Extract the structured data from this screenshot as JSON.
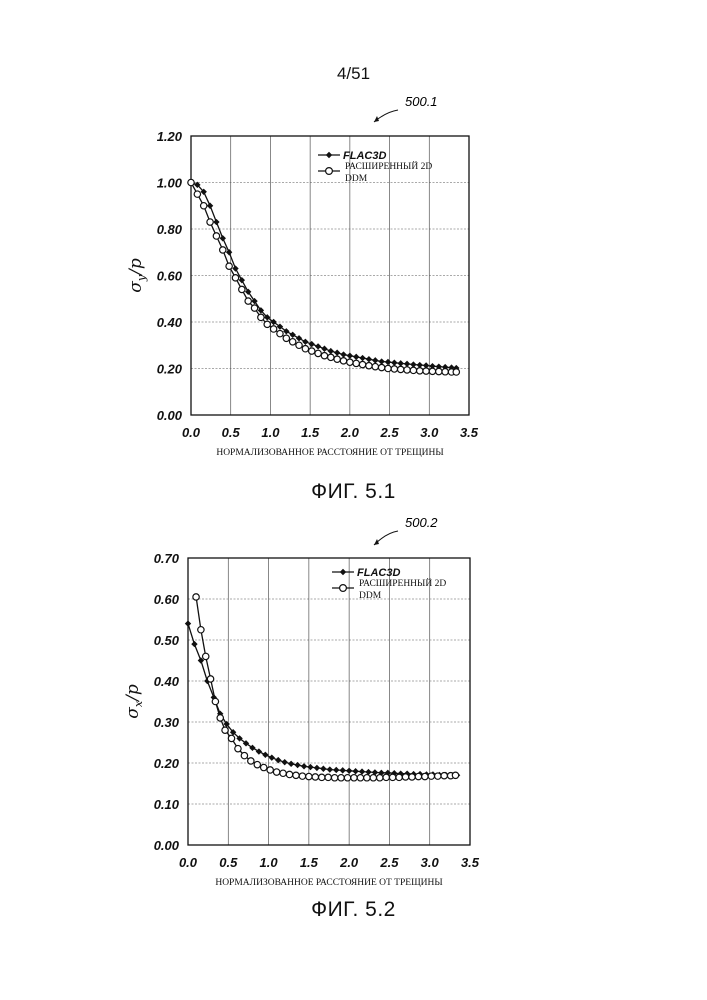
{
  "page_number": "4/51",
  "chart_data": [
    {
      "type": "line",
      "ref": "500.1",
      "figure_label": "ФИГ. 5.1",
      "ylabel": "σy/p",
      "ylabel_main": "σ",
      "ylabel_sub": "y",
      "ylabel_tail": "/p",
      "xlabel": "НОРМАЛИЗОВАННОЕ РАССТОЯНИЕ ОТ ТРЕЩИНЫ",
      "xlim": [
        0,
        3.5
      ],
      "ylim": [
        0,
        1.2
      ],
      "xticks": [
        "0.0",
        "0.5",
        "1.0",
        "1.5",
        "2.0",
        "2.5",
        "3.0",
        "3.5"
      ],
      "yticks": [
        "0.00",
        "0.20",
        "0.40",
        "0.60",
        "0.80",
        "1.00",
        "1.20"
      ],
      "grid": true,
      "legend": {
        "position": "top-right",
        "flac_label": "FLAC3D",
        "ddm_label_line1": "РАСШИРЕННЫЙ 2D",
        "ddm_label_line2": "DDM"
      },
      "series": [
        {
          "name": "FLAC3D",
          "marker": "diamond-filled",
          "x": [
            0.0,
            0.08,
            0.16,
            0.24,
            0.32,
            0.4,
            0.48,
            0.56,
            0.64,
            0.72,
            0.8,
            0.88,
            0.96,
            1.04,
            1.12,
            1.2,
            1.28,
            1.36,
            1.44,
            1.52,
            1.6,
            1.68,
            1.76,
            1.84,
            1.92,
            2.0,
            2.08,
            2.16,
            2.24,
            2.32,
            2.4,
            2.48,
            2.56,
            2.64,
            2.72,
            2.8,
            2.88,
            2.96,
            3.04,
            3.12,
            3.2,
            3.28,
            3.34
          ],
          "y": [
            1.0,
            0.99,
            0.96,
            0.9,
            0.83,
            0.76,
            0.7,
            0.63,
            0.58,
            0.53,
            0.49,
            0.45,
            0.42,
            0.4,
            0.38,
            0.36,
            0.345,
            0.33,
            0.315,
            0.305,
            0.295,
            0.285,
            0.275,
            0.268,
            0.26,
            0.255,
            0.25,
            0.245,
            0.24,
            0.235,
            0.23,
            0.228,
            0.225,
            0.222,
            0.22,
            0.217,
            0.215,
            0.213,
            0.21,
            0.208,
            0.206,
            0.204,
            0.202
          ]
        },
        {
          "name": "РАСШИРЕННЫЙ 2D DDM",
          "marker": "circle-open",
          "x": [
            0.0,
            0.08,
            0.16,
            0.24,
            0.32,
            0.4,
            0.48,
            0.56,
            0.64,
            0.72,
            0.8,
            0.88,
            0.96,
            1.04,
            1.12,
            1.2,
            1.28,
            1.36,
            1.44,
            1.52,
            1.6,
            1.68,
            1.76,
            1.84,
            1.92,
            2.0,
            2.08,
            2.16,
            2.24,
            2.32,
            2.4,
            2.48,
            2.56,
            2.64,
            2.72,
            2.8,
            2.88,
            2.96,
            3.04,
            3.12,
            3.2,
            3.28,
            3.34
          ],
          "y": [
            1.0,
            0.95,
            0.9,
            0.83,
            0.77,
            0.71,
            0.64,
            0.59,
            0.54,
            0.49,
            0.46,
            0.42,
            0.39,
            0.37,
            0.35,
            0.33,
            0.315,
            0.3,
            0.285,
            0.275,
            0.265,
            0.255,
            0.248,
            0.24,
            0.233,
            0.227,
            0.222,
            0.217,
            0.212,
            0.208,
            0.204,
            0.2,
            0.198,
            0.196,
            0.194,
            0.192,
            0.19,
            0.189,
            0.188,
            0.187,
            0.186,
            0.185,
            0.185
          ]
        }
      ]
    },
    {
      "type": "line",
      "ref": "500.2",
      "figure_label": "ФИГ. 5.2",
      "ylabel": "σx/p",
      "ylabel_main": "σ",
      "ylabel_sub": "x",
      "ylabel_tail": "/p",
      "xlabel": "НОРМАЛИЗОВАННОЕ РАССТОЯНИЕ ОТ ТРЕЩИНЫ",
      "xlim": [
        0,
        3.5
      ],
      "ylim": [
        0,
        0.7
      ],
      "xticks": [
        "0.0",
        "0.5",
        "1.0",
        "1.5",
        "2.0",
        "2.5",
        "3.0",
        "3.5"
      ],
      "yticks": [
        "0.00",
        "0.10",
        "0.20",
        "0.30",
        "0.40",
        "0.50",
        "0.60",
        "0.70"
      ],
      "grid": true,
      "legend": {
        "position": "top-right",
        "flac_label": "FLAC3D",
        "ddm_label_line1": "РАСШИРЕННЫЙ 2D",
        "ddm_label_line2": "DDM"
      },
      "series": [
        {
          "name": "FLAC3D",
          "marker": "diamond-filled",
          "x": [
            0.0,
            0.08,
            0.16,
            0.24,
            0.32,
            0.4,
            0.48,
            0.56,
            0.64,
            0.72,
            0.8,
            0.88,
            0.96,
            1.04,
            1.12,
            1.2,
            1.28,
            1.36,
            1.44,
            1.52,
            1.6,
            1.68,
            1.76,
            1.84,
            1.92,
            2.0,
            2.08,
            2.16,
            2.24,
            2.32,
            2.4,
            2.48,
            2.56,
            2.64,
            2.72,
            2.8,
            2.88,
            2.96,
            3.04,
            3.12,
            3.2,
            3.28,
            3.34
          ],
          "y": [
            0.54,
            0.49,
            0.45,
            0.4,
            0.36,
            0.32,
            0.295,
            0.275,
            0.26,
            0.248,
            0.237,
            0.228,
            0.22,
            0.213,
            0.207,
            0.202,
            0.198,
            0.195,
            0.192,
            0.19,
            0.188,
            0.186,
            0.184,
            0.183,
            0.182,
            0.181,
            0.18,
            0.179,
            0.178,
            0.177,
            0.176,
            0.176,
            0.175,
            0.174,
            0.174,
            0.173,
            0.173,
            0.172,
            0.172,
            0.171,
            0.171,
            0.17,
            0.17
          ]
        },
        {
          "name": "РАСШИРЕННЫЙ 2D DDM",
          "marker": "circle-open",
          "x": [
            0.1,
            0.16,
            0.22,
            0.28,
            0.34,
            0.4,
            0.46,
            0.54,
            0.62,
            0.7,
            0.78,
            0.86,
            0.94,
            1.02,
            1.1,
            1.18,
            1.26,
            1.34,
            1.42,
            1.5,
            1.58,
            1.66,
            1.74,
            1.82,
            1.9,
            1.98,
            2.06,
            2.14,
            2.22,
            2.3,
            2.38,
            2.46,
            2.54,
            2.62,
            2.7,
            2.78,
            2.86,
            2.94,
            3.02,
            3.1,
            3.18,
            3.26,
            3.32
          ],
          "y": [
            0.605,
            0.525,
            0.46,
            0.405,
            0.35,
            0.31,
            0.28,
            0.26,
            0.235,
            0.218,
            0.205,
            0.196,
            0.189,
            0.183,
            0.178,
            0.175,
            0.172,
            0.17,
            0.168,
            0.167,
            0.166,
            0.165,
            0.165,
            0.164,
            0.164,
            0.164,
            0.164,
            0.164,
            0.164,
            0.164,
            0.164,
            0.165,
            0.165,
            0.165,
            0.166,
            0.166,
            0.167,
            0.167,
            0.168,
            0.168,
            0.169,
            0.169,
            0.17
          ]
        }
      ]
    }
  ]
}
